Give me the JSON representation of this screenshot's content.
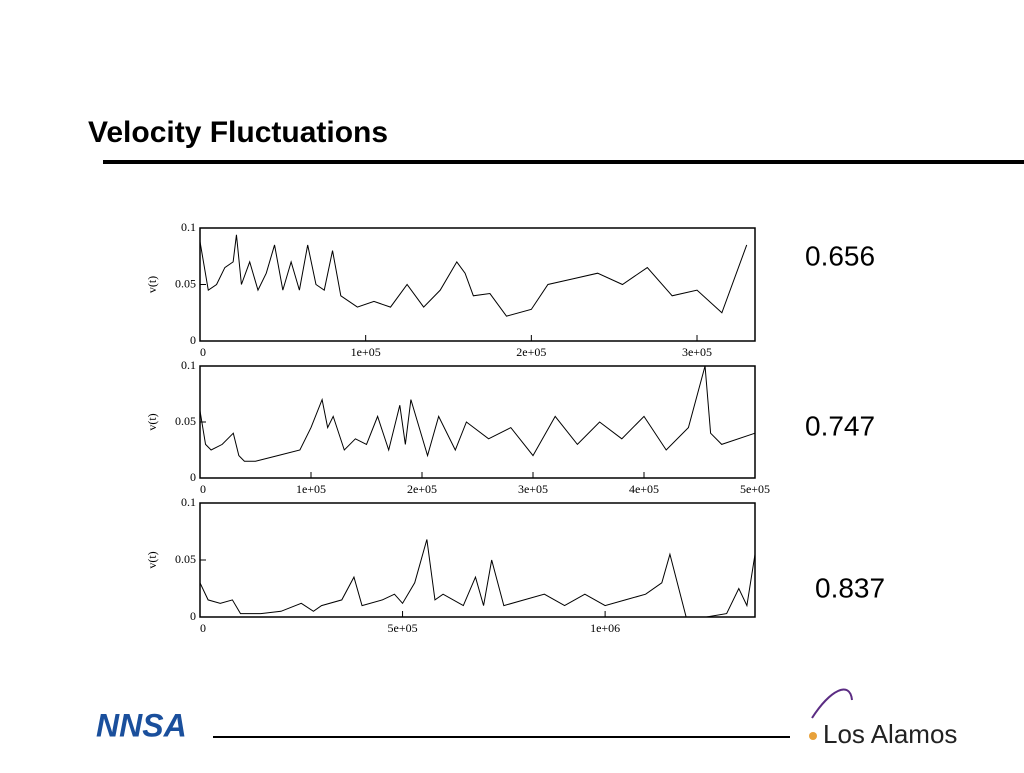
{
  "title": "Velocity Fluctuations",
  "footer": {
    "left_logo": "NNSA",
    "right_logo": "Los Alamos"
  },
  "chart_data": [
    {
      "type": "line",
      "ylabel": "v(t)",
      "annotation": "0.656",
      "color": "#000000",
      "xlim": [
        0,
        335000
      ],
      "ylim": [
        0,
        0.1
      ],
      "xticks": [
        0,
        {
          "value": 100000,
          "label": "1e+05"
        },
        {
          "value": 200000,
          "label": "2e+05"
        },
        {
          "value": 300000,
          "label": "3e+05"
        }
      ],
      "yticks": [
        0,
        0.05,
        0.1
      ],
      "x": [
        0,
        5000,
        10000,
        15000,
        20000,
        22000,
        25000,
        30000,
        35000,
        40000,
        45000,
        50000,
        55000,
        60000,
        65000,
        70000,
        75000,
        80000,
        85000,
        95000,
        105000,
        115000,
        125000,
        135000,
        145000,
        155000,
        160000,
        165000,
        175000,
        185000,
        200000,
        210000,
        225000,
        240000,
        255000,
        270000,
        285000,
        300000,
        315000,
        330000
      ],
      "values": [
        0.088,
        0.045,
        0.05,
        0.065,
        0.07,
        0.094,
        0.05,
        0.07,
        0.045,
        0.06,
        0.085,
        0.045,
        0.07,
        0.045,
        0.085,
        0.05,
        0.045,
        0.08,
        0.04,
        0.03,
        0.035,
        0.03,
        0.05,
        0.03,
        0.045,
        0.07,
        0.06,
        0.04,
        0.042,
        0.022,
        0.028,
        0.05,
        0.055,
        0.06,
        0.05,
        0.065,
        0.04,
        0.045,
        0.025,
        0.085
      ]
    },
    {
      "type": "line",
      "ylabel": "v(t)",
      "annotation": "0.747",
      "color": "#000000",
      "xlim": [
        0,
        500000
      ],
      "ylim": [
        0,
        0.1
      ],
      "xticks": [
        0,
        {
          "value": 100000,
          "label": "1e+05"
        },
        {
          "value": 200000,
          "label": "2e+05"
        },
        {
          "value": 300000,
          "label": "3e+05"
        },
        {
          "value": 400000,
          "label": "4e+05"
        },
        {
          "value": 500000,
          "label": "5e+05"
        }
      ],
      "yticks": [
        0,
        0.05,
        0.1
      ],
      "x": [
        0,
        5000,
        10000,
        20000,
        30000,
        35000,
        40000,
        50000,
        70000,
        90000,
        100000,
        110000,
        115000,
        120000,
        130000,
        140000,
        150000,
        160000,
        170000,
        180000,
        185000,
        190000,
        205000,
        215000,
        230000,
        240000,
        260000,
        280000,
        300000,
        320000,
        340000,
        360000,
        380000,
        400000,
        420000,
        440000,
        455000,
        460000,
        470000,
        500000
      ],
      "values": [
        0.06,
        0.03,
        0.025,
        0.03,
        0.04,
        0.02,
        0.015,
        0.015,
        0.02,
        0.025,
        0.045,
        0.07,
        0.045,
        0.055,
        0.025,
        0.035,
        0.03,
        0.055,
        0.025,
        0.065,
        0.03,
        0.07,
        0.02,
        0.055,
        0.025,
        0.05,
        0.035,
        0.045,
        0.02,
        0.055,
        0.03,
        0.05,
        0.035,
        0.055,
        0.025,
        0.045,
        0.1,
        0.04,
        0.03,
        0.04
      ]
    },
    {
      "type": "line",
      "ylabel": "v(t)",
      "annotation": "0.837",
      "color": "#000000",
      "xlim": [
        0,
        1370000
      ],
      "ylim": [
        0,
        0.1
      ],
      "xticks": [
        0,
        {
          "value": 500000,
          "label": "5e+05"
        },
        {
          "value": 1000000,
          "label": "1e+06"
        }
      ],
      "yticks": [
        0,
        0.05,
        0.1
      ],
      "x": [
        0,
        20000,
        50000,
        80000,
        100000,
        150000,
        200000,
        250000,
        280000,
        300000,
        350000,
        380000,
        400000,
        450000,
        480000,
        500000,
        530000,
        560000,
        580000,
        600000,
        650000,
        680000,
        700000,
        720000,
        750000,
        800000,
        850000,
        900000,
        950000,
        1000000,
        1050000,
        1100000,
        1140000,
        1160000,
        1200000,
        1250000,
        1300000,
        1330000,
        1350000,
        1370000
      ],
      "values": [
        0.03,
        0.015,
        0.012,
        0.015,
        0.003,
        0.003,
        0.005,
        0.012,
        0.005,
        0.01,
        0.015,
        0.035,
        0.01,
        0.015,
        0.02,
        0.012,
        0.03,
        0.068,
        0.015,
        0.02,
        0.01,
        0.035,
        0.01,
        0.05,
        0.01,
        0.015,
        0.02,
        0.01,
        0.02,
        0.01,
        0.015,
        0.02,
        0.03,
        0.055,
        0.0,
        0.0,
        0.003,
        0.025,
        0.01,
        0.055
      ]
    }
  ]
}
